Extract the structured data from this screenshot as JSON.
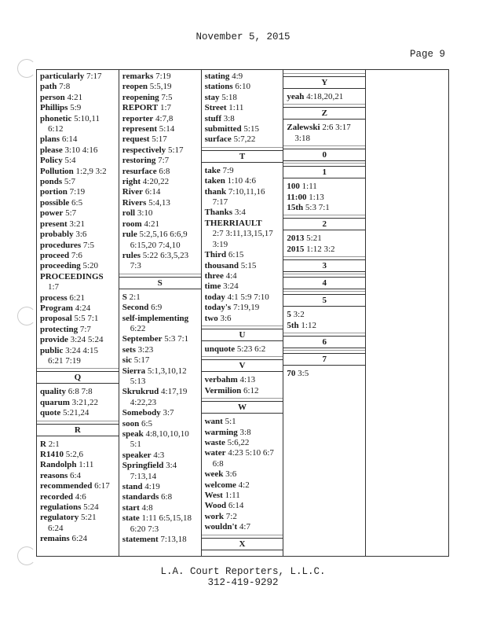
{
  "header": {
    "date": "November 5, 2015",
    "page": "Page 9"
  },
  "footer": {
    "company": "L.A. Court Reporters, L.L.C.",
    "phone": "312-419-9292"
  },
  "index": {
    "columns": [
      {
        "items": [
          {
            "term": "particularly",
            "refs": "7:17"
          },
          {
            "term": "path",
            "refs": "7:8"
          },
          {
            "term": "person",
            "refs": "4:21"
          },
          {
            "term": "Phillips",
            "refs": "5:9"
          },
          {
            "term": "phonetic",
            "refs": "5:10,11",
            "cont": [
              "6:12"
            ]
          },
          {
            "term": "plans",
            "refs": "6:14"
          },
          {
            "term": "please",
            "refs": "3:10 4:16"
          },
          {
            "term": "Policy",
            "refs": "5:4"
          },
          {
            "term": "Pollution",
            "refs": "1:2,9 3:2"
          },
          {
            "term": "ponds",
            "refs": "5:7"
          },
          {
            "term": "portion",
            "refs": "7:19"
          },
          {
            "term": "possible",
            "refs": "6:5"
          },
          {
            "term": "power",
            "refs": "5:7"
          },
          {
            "term": "present",
            "refs": "3:21"
          },
          {
            "term": "probably",
            "refs": "3:6"
          },
          {
            "term": "procedures",
            "refs": "7:5"
          },
          {
            "term": "proceed",
            "refs": "7:6"
          },
          {
            "term": "proceeding",
            "refs": "5:20"
          },
          {
            "term": "PROCEEDINGS",
            "refs": "",
            "cont": [
              "1:7"
            ]
          },
          {
            "term": "process",
            "refs": "6:21"
          },
          {
            "term": "Program",
            "refs": "4:24"
          },
          {
            "term": "proposal",
            "refs": "5:5 7:1"
          },
          {
            "term": "protecting",
            "refs": "7:7"
          },
          {
            "term": "provide",
            "refs": "3:24 5:24"
          },
          {
            "term": "public",
            "refs": "3:24 4:15",
            "cont": [
              "6:21 7:19"
            ]
          },
          {
            "letter": "Q"
          },
          {
            "term": "quality",
            "refs": "6:8 7:8"
          },
          {
            "term": "quarum",
            "refs": "3:21,22"
          },
          {
            "term": "quote",
            "refs": "5:21,24"
          },
          {
            "letter": "R"
          },
          {
            "term": "R",
            "refs": "2:1"
          },
          {
            "term": "R1410",
            "refs": "5:2,6"
          },
          {
            "term": "Randolph",
            "refs": "1:11"
          },
          {
            "term": "reasons",
            "refs": "6:4"
          },
          {
            "term": "recommended",
            "refs": "6:17"
          },
          {
            "term": "recorded",
            "refs": "4:6"
          },
          {
            "term": "regulations",
            "refs": "5:24"
          },
          {
            "term": "regulatory",
            "refs": "5:21",
            "cont": [
              "6:24"
            ]
          },
          {
            "term": "remains",
            "refs": "6:24"
          }
        ]
      },
      {
        "items": [
          {
            "term": "remarks",
            "refs": "7:19"
          },
          {
            "term": "reopen",
            "refs": "5:5,19"
          },
          {
            "term": "reopening",
            "refs": "7:5"
          },
          {
            "term": "REPORT",
            "refs": "1:7"
          },
          {
            "term": "reporter",
            "refs": "4:7,8"
          },
          {
            "term": "represent",
            "refs": "5:14"
          },
          {
            "term": "request",
            "refs": "5:17"
          },
          {
            "term": "respectively",
            "refs": "5:17"
          },
          {
            "term": "restoring",
            "refs": "7:7"
          },
          {
            "term": "resurface",
            "refs": "6:8"
          },
          {
            "term": "right",
            "refs": "4:20,22"
          },
          {
            "term": "River",
            "refs": "6:14"
          },
          {
            "term": "Rivers",
            "refs": "5:4,13"
          },
          {
            "term": "roll",
            "refs": "3:10"
          },
          {
            "term": "room",
            "refs": "4:21"
          },
          {
            "term": "rule",
            "refs": "5:2,5,16 6:6,9",
            "cont": [
              "6:15,20 7:4,10"
            ]
          },
          {
            "term": "rules",
            "refs": "5:22 6:3,5,23",
            "cont": [
              "7:3"
            ]
          },
          {
            "letter": "S"
          },
          {
            "term": "S",
            "refs": "2:1"
          },
          {
            "term": "Second",
            "refs": "6:9"
          },
          {
            "term": "self-implementing",
            "refs": "",
            "cont": [
              "6:22"
            ]
          },
          {
            "term": "September",
            "refs": "5:3 7:1"
          },
          {
            "term": "sets",
            "refs": "3:23"
          },
          {
            "term": "sic",
            "refs": "5:17"
          },
          {
            "term": "Sierra",
            "refs": "5:1,3,10,12",
            "cont": [
              "5:13"
            ]
          },
          {
            "term": "Skrukrud",
            "refs": "4:17,19",
            "cont": [
              "4:22,23"
            ]
          },
          {
            "term": "Somebody",
            "refs": "3:7"
          },
          {
            "term": "soon",
            "refs": "6:5"
          },
          {
            "term": "speak",
            "refs": "4:8,10,10,10",
            "cont": [
              "5:1"
            ]
          },
          {
            "term": "speaker",
            "refs": "4:3"
          },
          {
            "term": "Springfield",
            "refs": "3:4",
            "cont": [
              "7:13,14"
            ]
          },
          {
            "term": "stand",
            "refs": "4:19"
          },
          {
            "term": "standards",
            "refs": "6:8"
          },
          {
            "term": "start",
            "refs": "4:8"
          },
          {
            "term": "state",
            "refs": "1:11 6:5,15,18",
            "cont": [
              "6:20 7:3"
            ]
          },
          {
            "term": "statement",
            "refs": "7:13,18"
          }
        ]
      },
      {
        "items": [
          {
            "term": "stating",
            "refs": "4:9"
          },
          {
            "term": "stations",
            "refs": "6:10"
          },
          {
            "term": "stay",
            "refs": "5:18"
          },
          {
            "term": "Street",
            "refs": "1:11"
          },
          {
            "term": "stuff",
            "refs": "3:8"
          },
          {
            "term": "submitted",
            "refs": "5:15"
          },
          {
            "term": "surface",
            "refs": "5:7,22"
          },
          {
            "letter": "T"
          },
          {
            "term": "take",
            "refs": "7:9"
          },
          {
            "term": "taken",
            "refs": "1:10 4:6"
          },
          {
            "term": "thank",
            "refs": "7:10,11,16",
            "cont": [
              "7:17"
            ]
          },
          {
            "term": "Thanks",
            "refs": "3:4"
          },
          {
            "term": "THERRIAULT",
            "refs": "",
            "cont": [
              "2:7 3:11,13,15,17",
              "3:19"
            ]
          },
          {
            "term": "Third",
            "refs": "6:15"
          },
          {
            "term": "thousand",
            "refs": "5:15"
          },
          {
            "term": "three",
            "refs": "4:4"
          },
          {
            "term": "time",
            "refs": "3:24"
          },
          {
            "term": "today",
            "refs": "4:1 5:9 7:10"
          },
          {
            "term": "today's",
            "refs": "7:19,19"
          },
          {
            "term": "two",
            "refs": "3:6"
          },
          {
            "letter": "U"
          },
          {
            "term": "unquote",
            "refs": "5:23 6:2"
          },
          {
            "letter": "V"
          },
          {
            "term": "verbahm",
            "refs": "4:13"
          },
          {
            "term": "Vermilion",
            "refs": "6:12"
          },
          {
            "letter": "W"
          },
          {
            "term": "want",
            "refs": "5:1"
          },
          {
            "term": "warming",
            "refs": "3:8"
          },
          {
            "term": "waste",
            "refs": "5:6,22"
          },
          {
            "term": "water",
            "refs": "4:23 5:10 6:7",
            "cont": [
              "6:8"
            ]
          },
          {
            "term": "week",
            "refs": "3:6"
          },
          {
            "term": "welcome",
            "refs": "4:2"
          },
          {
            "term": "West",
            "refs": "1:11"
          },
          {
            "term": "Wood",
            "refs": "6:14"
          },
          {
            "term": "work",
            "refs": "7:2"
          },
          {
            "term": "wouldn't",
            "refs": "4:7"
          },
          {
            "letter": "X"
          }
        ]
      },
      {
        "items": [
          {
            "letter": "Y"
          },
          {
            "term": "yeah",
            "refs": "4:18,20,21"
          },
          {
            "letter": "Z"
          },
          {
            "term": "Zalewski",
            "refs": "2:6 3:17",
            "cont": [
              "3:18"
            ]
          },
          {
            "letter": "0"
          },
          {
            "letter": "1"
          },
          {
            "term": "100",
            "refs": "1:11"
          },
          {
            "term": "11:00",
            "refs": "1:13"
          },
          {
            "term": "15th",
            "refs": "5:3 7:1"
          },
          {
            "letter": "2"
          },
          {
            "term": "2013",
            "refs": "5:21"
          },
          {
            "term": "2015",
            "refs": "1:12 3:2"
          },
          {
            "letter": "3"
          },
          {
            "letter": "4"
          },
          {
            "letter": "5"
          },
          {
            "term": "5",
            "refs": "3:2"
          },
          {
            "term": "5th",
            "refs": "1:12"
          },
          {
            "letter": "6"
          },
          {
            "letter": "7"
          },
          {
            "term": "70",
            "refs": "3:5"
          }
        ]
      },
      {
        "items": []
      }
    ]
  }
}
